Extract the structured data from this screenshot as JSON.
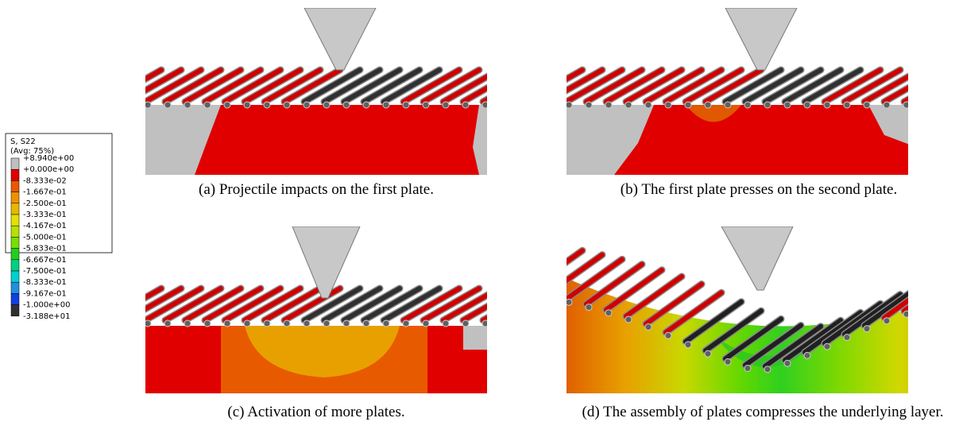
{
  "legend": {
    "title": "S, S22",
    "subtitle": "(Avg: 75%)",
    "labels": [
      "+8.940e+00",
      "+0.000e+00",
      "-8.333e-02",
      "-1.667e-01",
      "-2.500e-01",
      "-3.333e-01",
      "-4.167e-01",
      "-5.000e-01",
      "-5.833e-01",
      "-6.667e-01",
      "-7.500e-01",
      "-8.333e-01",
      "-9.167e-01",
      "-1.000e+00",
      "-3.188e+01"
    ],
    "colors": [
      "#c0c0c0",
      "#e00000",
      "#e85a00",
      "#f09000",
      "#e8b800",
      "#e4e000",
      "#b8e000",
      "#78e000",
      "#20d020",
      "#00d080",
      "#00d0d0",
      "#2090e0",
      "#1040e0",
      "#303030"
    ]
  },
  "captions": [
    "(a) Projectile impacts on the first plate.",
    "(b) The first plate presses on the second plate.",
    "(c) Activation of more plates.",
    "(d) The assembly of plates compresses the underlying layer."
  ]
}
